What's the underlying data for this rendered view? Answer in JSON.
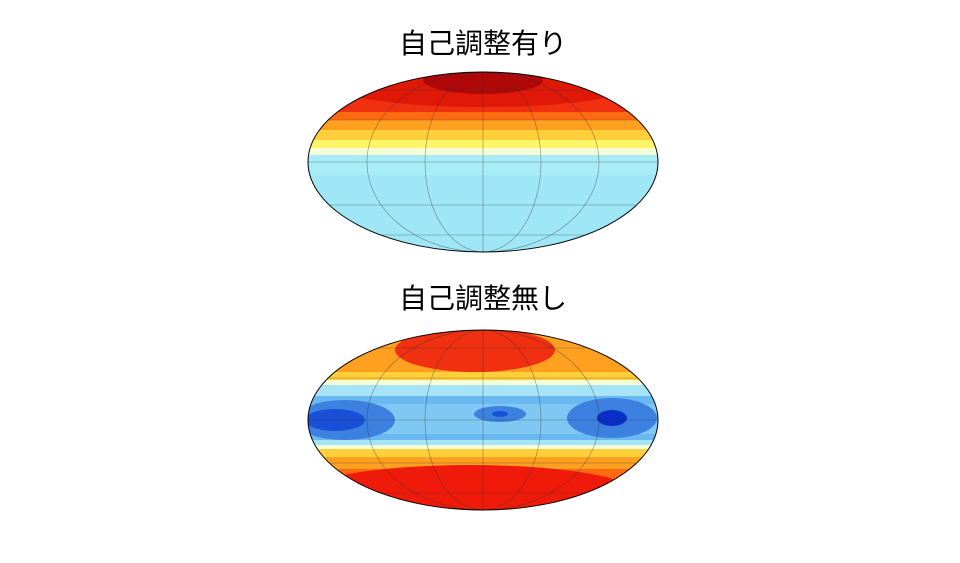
{
  "panels": [
    {
      "title": "自己調整有り"
    },
    {
      "title": "自己調整無し"
    }
  ]
}
